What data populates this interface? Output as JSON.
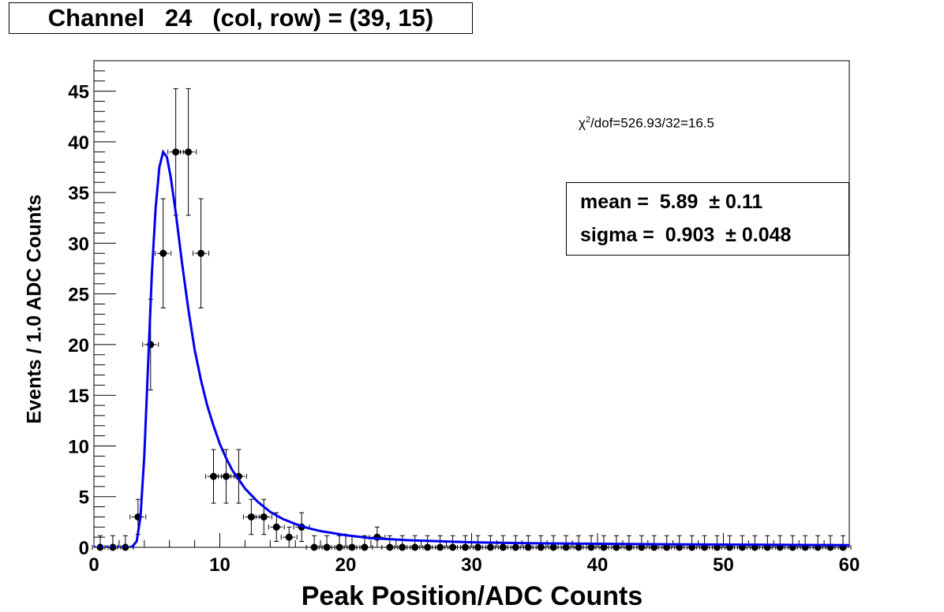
{
  "title_parts": [
    "Channel",
    "24",
    "(col, row) = (39, 15)"
  ],
  "fit_chi2": {
    "symbol": "χ",
    "sup": "2",
    "text": "/dof=526.93/32=16.5"
  },
  "stats": {
    "mean_label": "mean = ",
    "mean_value": "5.89",
    "mean_err": "± 0.11",
    "sigma_label": "sigma = ",
    "sigma_value": "0.903",
    "sigma_err": "± 0.048"
  },
  "colors": {
    "fit_curve": "#0000ee",
    "points": "#000000"
  },
  "chart_data": {
    "type": "scatter",
    "title": "Channel   24   (col, row) = (39, 15)",
    "xlabel": "Peak Position/ADC Counts",
    "ylabel": "Events / 1.0 ADC Counts",
    "xlim": [
      0,
      60
    ],
    "ylim": [
      0,
      48
    ],
    "x_ticks": [
      "0",
      "10",
      "20",
      "30",
      "40",
      "50",
      "60"
    ],
    "y_ticks": [
      "0",
      "5",
      "10",
      "15",
      "20",
      "25",
      "30",
      "35",
      "40",
      "45"
    ],
    "grid": false,
    "series": [
      {
        "type": "points_with_errors",
        "x": [
          0.5,
          1.5,
          2.5,
          3.5,
          4.5,
          5.5,
          6.5,
          7.5,
          8.5,
          9.5,
          10.5,
          11.5,
          12.5,
          13.5,
          14.5,
          15.5,
          16.5,
          17.5,
          18.5,
          19.5,
          20.5,
          21.5,
          22.5,
          23.5,
          24.5,
          25.5,
          26.5,
          27.5,
          28.5,
          29.5,
          30.5,
          31.5,
          32.5,
          33.5,
          34.5,
          35.5,
          36.5,
          37.5,
          38.5,
          39.5,
          40.5,
          41.5,
          42.5,
          43.5,
          44.5,
          45.5,
          46.5,
          47.5,
          48.5,
          49.5,
          50.5,
          51.5,
          52.5,
          53.5,
          54.5,
          55.5,
          56.5,
          57.5,
          58.5,
          59.5
        ],
        "y": [
          0,
          0,
          0,
          3,
          20,
          29,
          39,
          39,
          29,
          7,
          7,
          7,
          3,
          3,
          2,
          1,
          2,
          0,
          0,
          0,
          0,
          0,
          1,
          0,
          0,
          0,
          0,
          0,
          0,
          0,
          0,
          0,
          0,
          0,
          0,
          0,
          0,
          0,
          0,
          0,
          0,
          0,
          0,
          0,
          0,
          0,
          0,
          0,
          0,
          0,
          0,
          0,
          0,
          0,
          0,
          0,
          0,
          0,
          0,
          0
        ]
      },
      {
        "type": "fit_curve",
        "x": [
          3.0,
          3.4,
          3.7,
          4.0,
          4.3,
          4.6,
          4.9,
          5.2,
          5.5,
          5.8,
          6.1,
          6.5,
          7.0,
          7.5,
          8.0,
          8.5,
          9.0,
          9.5,
          10.0,
          10.5,
          11.0,
          12.0,
          13.0,
          14.0,
          15.0,
          16.0,
          17.0,
          18.0,
          20.0,
          22.0,
          25.0,
          30.0,
          35.0,
          40.0,
          45.0,
          50.0,
          55.0,
          60.0
        ],
        "y": [
          0.0,
          0.6,
          3.0,
          9.0,
          18.0,
          27.0,
          33.5,
          37.5,
          39.0,
          38.5,
          36.5,
          33.0,
          28.0,
          23.5,
          19.5,
          16.5,
          14.0,
          12.0,
          10.2,
          8.8,
          7.6,
          5.8,
          4.5,
          3.5,
          2.8,
          2.3,
          1.9,
          1.6,
          1.2,
          0.9,
          0.7,
          0.5,
          0.4,
          0.35,
          0.3,
          0.27,
          0.24,
          0.22
        ]
      }
    ]
  }
}
